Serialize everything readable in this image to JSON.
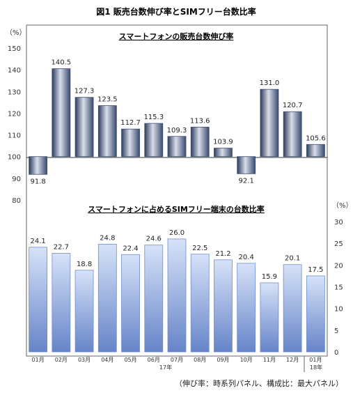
{
  "figure_title": "図1  販売台数伸び率とSIMフリー台数比率",
  "note": "（伸び率：時系列パネル、構成比：最大パネル）",
  "months": [
    "01月",
    "02月",
    "03月",
    "04月",
    "05月",
    "06月",
    "07月",
    "08月",
    "09月",
    "10月",
    "11月",
    "12月",
    "01月"
  ],
  "years": [
    "17年",
    "18年"
  ],
  "colors": {
    "top_bar": "#3d4f72",
    "bottom_bar": "#6f8fcf"
  },
  "chart_data": [
    {
      "type": "bar",
      "title": "スマートフォンの販売台数伸び率",
      "ylabel": "（%）",
      "baseline": 100,
      "ylim": [
        80,
        150
      ],
      "yticks": [
        80,
        90,
        100,
        110,
        120,
        130,
        140,
        150
      ],
      "categories": [
        "01月",
        "02月",
        "03月",
        "04月",
        "05月",
        "06月",
        "07月",
        "08月",
        "09月",
        "10月",
        "11月",
        "12月",
        "01月"
      ],
      "values": [
        91.8,
        140.5,
        127.3,
        123.5,
        112.7,
        115.3,
        109.3,
        113.6,
        103.9,
        92.1,
        131.0,
        120.7,
        105.6
      ],
      "labels": [
        "91.8",
        "140.5",
        "127.3",
        "123.5",
        "112.7",
        "115.3",
        "109.3",
        "113.6",
        "103.9",
        "92.1",
        "131.0",
        "120.7",
        "105.6"
      ],
      "grid": false
    },
    {
      "type": "bar",
      "title": "スマートフォンに占めるSIMフリー端末の台数比率",
      "ylabel": "（%）",
      "ylim": [
        0,
        30
      ],
      "yticks": [
        0,
        5,
        10,
        15,
        20,
        25,
        30
      ],
      "categories": [
        "01月",
        "02月",
        "03月",
        "04月",
        "05月",
        "06月",
        "07月",
        "08月",
        "09月",
        "10月",
        "11月",
        "12月",
        "01月"
      ],
      "values": [
        24.1,
        22.7,
        18.8,
        24.8,
        22.4,
        24.6,
        26.0,
        22.5,
        21.2,
        20.4,
        15.9,
        20.1,
        17.5
      ],
      "labels": [
        "24.1",
        "22.7",
        "18.8",
        "24.8",
        "22.4",
        "24.6",
        "26.0",
        "22.5",
        "21.2",
        "20.4",
        "15.9",
        "20.1",
        "17.5"
      ],
      "grid": false
    }
  ]
}
